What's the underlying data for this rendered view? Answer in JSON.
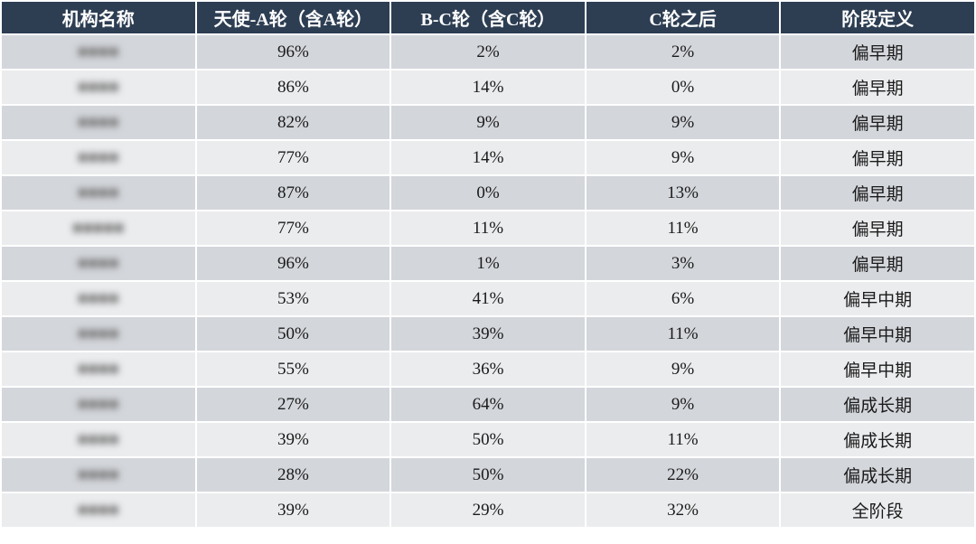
{
  "table": {
    "headers": [
      "机构名称",
      "天使-A轮（含A轮）",
      "B-C轮（含C轮）",
      "C轮之后",
      "阶段定义"
    ],
    "rows": [
      {
        "name": "",
        "a": "96%",
        "bc": "2%",
        "after_c": "2%",
        "stage": "偏早期"
      },
      {
        "name": "",
        "a": "86%",
        "bc": "14%",
        "after_c": "0%",
        "stage": "偏早期"
      },
      {
        "name": "",
        "a": "82%",
        "bc": "9%",
        "after_c": "9%",
        "stage": "偏早期"
      },
      {
        "name": "",
        "a": "77%",
        "bc": "14%",
        "after_c": "9%",
        "stage": "偏早期"
      },
      {
        "name": "",
        "a": "87%",
        "bc": "0%",
        "after_c": "13%",
        "stage": "偏早期"
      },
      {
        "name": "",
        "a": "77%",
        "bc": "11%",
        "after_c": "11%",
        "stage": "偏早期"
      },
      {
        "name": "",
        "a": "96%",
        "bc": "1%",
        "after_c": "3%",
        "stage": "偏早期"
      },
      {
        "name": "",
        "a": "53%",
        "bc": "41%",
        "after_c": "6%",
        "stage": "偏早中期"
      },
      {
        "name": "",
        "a": "50%",
        "bc": "39%",
        "after_c": "11%",
        "stage": "偏早中期"
      },
      {
        "name": "",
        "a": "55%",
        "bc": "36%",
        "after_c": "9%",
        "stage": "偏早中期"
      },
      {
        "name": "",
        "a": "27%",
        "bc": "64%",
        "after_c": "9%",
        "stage": "偏成长期"
      },
      {
        "name": "",
        "a": "39%",
        "bc": "50%",
        "after_c": "11%",
        "stage": "偏成长期"
      },
      {
        "name": "",
        "a": "28%",
        "bc": "50%",
        "after_c": "22%",
        "stage": "偏成长期"
      },
      {
        "name": "",
        "a": "39%",
        "bc": "29%",
        "after_c": "32%",
        "stage": "全阶段"
      }
    ]
  },
  "colors": {
    "header_bg": "#2d3e53",
    "row_dark": "#d3d6db",
    "row_light": "#ebecee"
  }
}
